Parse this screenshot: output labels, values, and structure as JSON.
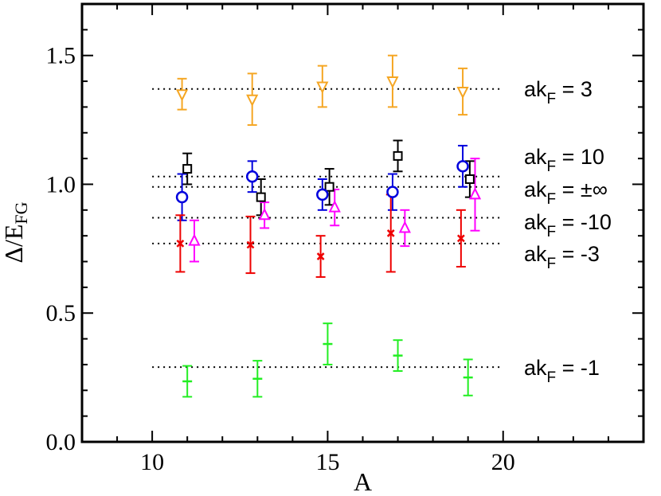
{
  "chart_data": {
    "type": "scatter",
    "xlabel": "A",
    "ylabel_main": "Δ/E",
    "ylabel_sub": "FG",
    "xlim": [
      8,
      24
    ],
    "ylim": [
      0,
      1.7
    ],
    "xticks": [
      10,
      15,
      20
    ],
    "xtick_labels": [
      "10",
      "15",
      "20"
    ],
    "yticks": [
      0.0,
      0.5,
      1.0,
      1.5
    ],
    "ytick_labels": [
      "0.0",
      "0.5",
      "1.0",
      "1.5"
    ],
    "grid": false,
    "series": [
      {
        "name": "akF = 3",
        "marker": "triangle-down",
        "color": "#f5a623",
        "x": [
          10.85,
          12.85,
          14.85,
          16.85,
          18.85
        ],
        "y": [
          1.35,
          1.33,
          1.38,
          1.4,
          1.36
        ],
        "err": [
          0.06,
          0.1,
          0.08,
          0.1,
          0.09
        ],
        "line_level": 1.37,
        "label_main": "ak",
        "label_sub": "F",
        "label_rest": " = 3"
      },
      {
        "name": "akF = 10",
        "marker": "square",
        "color": "#000000",
        "x": [
          11.0,
          13.1,
          15.05,
          17.0,
          19.05
        ],
        "y": [
          1.06,
          0.95,
          0.99,
          1.11,
          1.02
        ],
        "err": [
          0.06,
          0.07,
          0.07,
          0.06,
          0.07
        ],
        "line_level": 1.03,
        "label_main": "ak",
        "label_sub": "F",
        "label_rest": " = 10"
      },
      {
        "name": "akF = ±∞",
        "marker": "circle",
        "color": "#0000dd",
        "x": [
          10.85,
          12.85,
          14.85,
          16.85,
          18.85
        ],
        "y": [
          0.95,
          1.03,
          0.96,
          0.97,
          1.07
        ],
        "err": [
          0.09,
          0.06,
          0.06,
          0.07,
          0.08
        ],
        "line_level": 0.99,
        "label_main": "ak",
        "label_sub": "F",
        "label_rest": " = ±∞"
      },
      {
        "name": "akF = -10",
        "marker": "triangle-up",
        "color": "#ff00ff",
        "x": [
          11.2,
          13.2,
          15.2,
          17.2,
          19.2
        ],
        "y": [
          0.78,
          0.88,
          0.91,
          0.83,
          0.96
        ],
        "err": [
          0.08,
          0.05,
          0.07,
          0.07,
          0.14
        ],
        "line_level": 0.87,
        "label_main": "ak",
        "label_sub": "F",
        "label_rest": " = -10"
      },
      {
        "name": "akF = -3",
        "marker": "x",
        "color": "#ee0000",
        "x": [
          10.8,
          12.8,
          14.8,
          16.8,
          18.8
        ],
        "y": [
          0.77,
          0.765,
          0.72,
          0.81,
          0.79
        ],
        "err": [
          0.11,
          0.11,
          0.08,
          0.15,
          0.11
        ],
        "line_level": 0.77,
        "label_main": "ak",
        "label_sub": "F",
        "label_rest": " = -3"
      },
      {
        "name": "akF = -1",
        "marker": "plus",
        "color": "#22ee22",
        "x": [
          11.0,
          13.0,
          15.0,
          17.0,
          19.0
        ],
        "y": [
          0.235,
          0.245,
          0.38,
          0.335,
          0.25
        ],
        "err": [
          0.06,
          0.07,
          0.08,
          0.06,
          0.07
        ],
        "line_level": 0.29,
        "label_main": "ak",
        "label_sub": "F",
        "label_rest": " = -1"
      }
    ]
  }
}
